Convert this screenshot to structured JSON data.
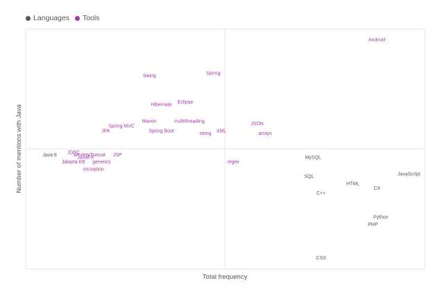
{
  "legend": [
    {
      "label": "Languages",
      "color": "#555555",
      "icon": "circle-dot-icon"
    },
    {
      "label": "Tools",
      "color": "#a33aa3",
      "icon": "circle-dot-icon"
    }
  ],
  "chart_data": {
    "type": "scatter",
    "xlabel": "Total frequency",
    "ylabel": "Number of mentions with Java",
    "grid": false,
    "divider_lines": true,
    "legend_position": "top-left",
    "series": [
      {
        "name": "Languages",
        "color": "#555555",
        "points": [
          {
            "label": "Java 8",
            "x": 0.06,
            "y": 0.47
          },
          {
            "label": "MySQL",
            "x": 0.72,
            "y": 0.46
          },
          {
            "label": "JavaScript",
            "x": 0.96,
            "y": 0.39
          },
          {
            "label": "SQL",
            "x": 0.71,
            "y": 0.38
          },
          {
            "label": "HTML",
            "x": 0.82,
            "y": 0.35
          },
          {
            "label": "C#",
            "x": 0.88,
            "y": 0.33
          },
          {
            "label": "C++",
            "x": 0.74,
            "y": 0.31
          },
          {
            "label": "Python",
            "x": 0.89,
            "y": 0.21
          },
          {
            "label": "PHP",
            "x": 0.87,
            "y": 0.18
          },
          {
            "label": "CSS",
            "x": 0.74,
            "y": 0.04
          }
        ]
      },
      {
        "name": "Tools",
        "color": "#a33aa3",
        "points": [
          {
            "label": "Android",
            "x": 0.88,
            "y": 0.95
          },
          {
            "label": "Swing",
            "x": 0.31,
            "y": 0.8
          },
          {
            "label": "Spring",
            "x": 0.47,
            "y": 0.81
          },
          {
            "label": "Eclipse",
            "x": 0.4,
            "y": 0.69
          },
          {
            "label": "Hibernate",
            "x": 0.34,
            "y": 0.68
          },
          {
            "label": "Maven",
            "x": 0.31,
            "y": 0.61
          },
          {
            "label": "multithreading",
            "x": 0.41,
            "y": 0.61
          },
          {
            "label": "JSON",
            "x": 0.58,
            "y": 0.6
          },
          {
            "label": "Spring MVC",
            "x": 0.24,
            "y": 0.59
          },
          {
            "label": "JPA",
            "x": 0.2,
            "y": 0.57
          },
          {
            "label": "Spring Boot",
            "x": 0.34,
            "y": 0.57
          },
          {
            "label": "XML",
            "x": 0.49,
            "y": 0.57
          },
          {
            "label": "string",
            "x": 0.45,
            "y": 0.56
          },
          {
            "label": "arrays",
            "x": 0.6,
            "y": 0.56
          },
          {
            "label": "JDBC",
            "x": 0.12,
            "y": 0.48
          },
          {
            "label": "servlets",
            "x": 0.14,
            "y": 0.47
          },
          {
            "label": "Tomcat",
            "x": 0.18,
            "y": 0.47
          },
          {
            "label": "JSP",
            "x": 0.23,
            "y": 0.47
          },
          {
            "label": "JavaFX",
            "x": 0.15,
            "y": 0.46
          },
          {
            "label": "generics",
            "x": 0.19,
            "y": 0.44
          },
          {
            "label": "Jakarta EE",
            "x": 0.12,
            "y": 0.44
          },
          {
            "label": "exception",
            "x": 0.17,
            "y": 0.41
          },
          {
            "label": "regex",
            "x": 0.52,
            "y": 0.44
          }
        ]
      }
    ]
  }
}
